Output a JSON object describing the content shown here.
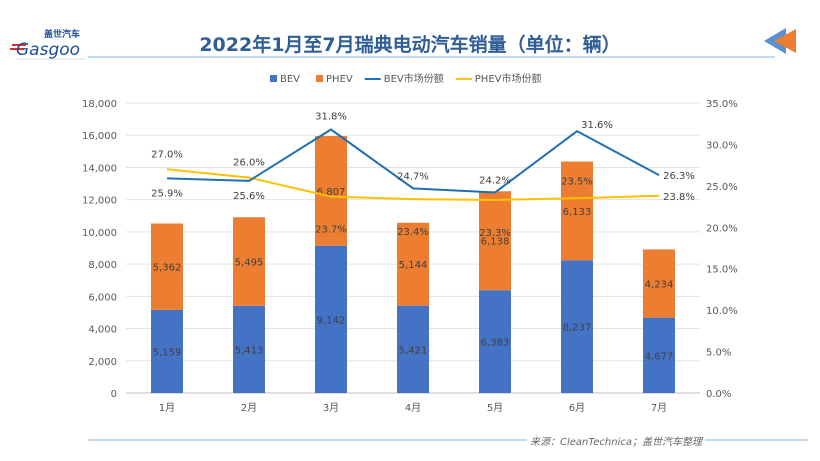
{
  "header": {
    "title": "2022年1月至7月瑞典电动汽车销量（单位：辆）",
    "logo_text": "盖世汽车 Gasgoo"
  },
  "footer": {
    "source": "来源：CleanTechnica；盖世汽车整理"
  },
  "colors": {
    "bev": "#4472c4",
    "phev": "#ed7d31",
    "bev_share": "#1f6fb2",
    "phev_share": "#ffc000",
    "title": "#2f5e97"
  },
  "chart_data": {
    "type": "bar",
    "stacked": true,
    "title": "",
    "categories": [
      "1月",
      "2月",
      "3月",
      "4月",
      "5月",
      "6月",
      "7月"
    ],
    "series": [
      {
        "name": "BEV",
        "type": "bar",
        "axis": "left",
        "values": [
          5159,
          5413,
          9142,
          5421,
          6383,
          8237,
          4677
        ],
        "labels": [
          "5,159",
          "5,413",
          "9,142",
          "5,421",
          "6,383",
          "8,237",
          "4,677"
        ]
      },
      {
        "name": "PHEV",
        "type": "bar",
        "axis": "left",
        "values": [
          5362,
          5495,
          6807,
          5144,
          6138,
          6133,
          4234
        ],
        "labels": [
          "5,362",
          "5,495",
          "6,807",
          "5,144",
          "6,138",
          "6,133",
          "4,234"
        ]
      },
      {
        "name": "BEV市场份额",
        "type": "line",
        "axis": "right",
        "values": [
          25.9,
          25.6,
          31.8,
          24.7,
          24.2,
          31.6,
          26.3
        ],
        "labels": [
          "25.9%",
          "25.6%",
          "31.8%",
          "24.7%",
          "24.2%",
          "31.6%",
          "26.3%"
        ]
      },
      {
        "name": "PHEV市场份额",
        "type": "line",
        "axis": "right",
        "values": [
          27.0,
          26.0,
          23.7,
          23.4,
          23.3,
          23.5,
          23.8
        ],
        "labels": [
          "27.0%",
          "26.0%",
          "23.7%",
          "23.4%",
          "23.3%",
          "23.5%",
          "23.8%"
        ]
      }
    ],
    "y_left": {
      "range": [
        0,
        18000
      ],
      "ticks": [
        "0",
        "2,000",
        "4,000",
        "6,000",
        "8,000",
        "10,000",
        "12,000",
        "14,000",
        "16,000",
        "18,000"
      ]
    },
    "y_right": {
      "range": [
        0,
        35
      ],
      "ticks": [
        "0.0%",
        "5.0%",
        "10.0%",
        "15.0%",
        "20.0%",
        "25.0%",
        "30.0%",
        "35.0%"
      ]
    },
    "grid": true,
    "legend": "top"
  }
}
